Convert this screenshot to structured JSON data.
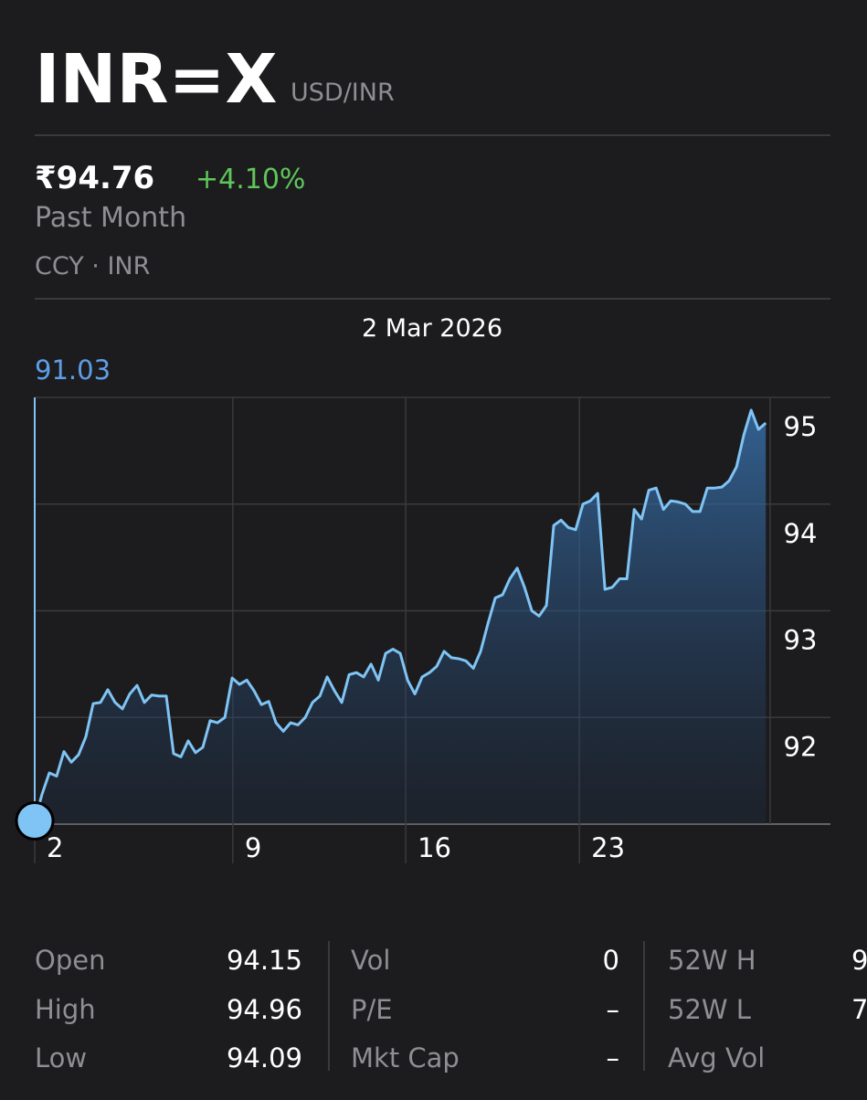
{
  "header": {
    "ticker": "INR=X",
    "name": "USD/INR",
    "price": "₹94.76",
    "change": "+4.10%",
    "period": "Past Month",
    "exchange": "CCY · INR"
  },
  "chart_data": {
    "type": "line",
    "selected_date": "2 Mar 2026",
    "selected_value": 91.03,
    "series": [
      {
        "color": "#7fc4f5",
        "values": [
          91.03,
          91.28,
          91.48,
          91.45,
          91.68,
          91.58,
          91.65,
          91.82,
          92.13,
          92.14,
          92.26,
          92.14,
          92.08,
          92.22,
          92.3,
          92.14,
          92.21,
          92.2,
          92.2,
          91.66,
          91.63,
          91.78,
          91.67,
          91.72,
          91.97,
          91.95,
          92.0,
          92.37,
          92.31,
          92.35,
          92.25,
          92.12,
          92.15,
          91.95,
          91.87,
          91.95,
          91.93,
          92.0,
          92.14,
          92.2,
          92.38,
          92.25,
          92.14,
          92.4,
          92.42,
          92.38,
          92.5,
          92.35,
          92.6,
          92.64,
          92.6,
          92.35,
          92.22,
          92.38,
          92.42,
          92.48,
          92.62,
          92.56,
          92.55,
          92.53,
          92.46,
          92.62,
          92.88,
          93.12,
          93.15,
          93.3,
          93.4,
          93.22,
          93.0,
          92.95,
          93.05,
          93.8,
          93.85,
          93.78,
          93.76,
          94.0,
          94.03,
          94.1,
          93.2,
          93.22,
          93.3,
          93.3,
          93.95,
          93.86,
          94.13,
          94.15,
          93.95,
          94.03,
          94.02,
          94.0,
          93.93,
          93.93,
          94.15,
          94.15,
          94.16,
          94.22,
          94.35,
          94.65,
          94.88,
          94.7,
          94.76
        ]
      }
    ],
    "xlim": [
      0,
      100.6
    ],
    "xticks": [
      {
        "value": 0,
        "label": "2"
      },
      {
        "value": 27.1,
        "label": "9"
      },
      {
        "value": 50.75,
        "label": "16"
      },
      {
        "value": 74.5,
        "label": "23"
      }
    ],
    "ylim": [
      91,
      95
    ],
    "yticks": [
      92,
      93,
      94,
      95
    ],
    "grid": true
  },
  "stats": [
    [
      [
        "Open",
        "94.15"
      ],
      [
        "High",
        "94.96"
      ],
      [
        "Low",
        "94.09"
      ]
    ],
    [
      [
        "Vol",
        "0"
      ],
      [
        "P/E",
        "–"
      ],
      [
        "Mkt Cap",
        "–"
      ]
    ],
    [
      [
        "52W H",
        "9"
      ],
      [
        "52W L",
        "7"
      ],
      [
        "Avg Vol"
      ]
    ]
  ]
}
